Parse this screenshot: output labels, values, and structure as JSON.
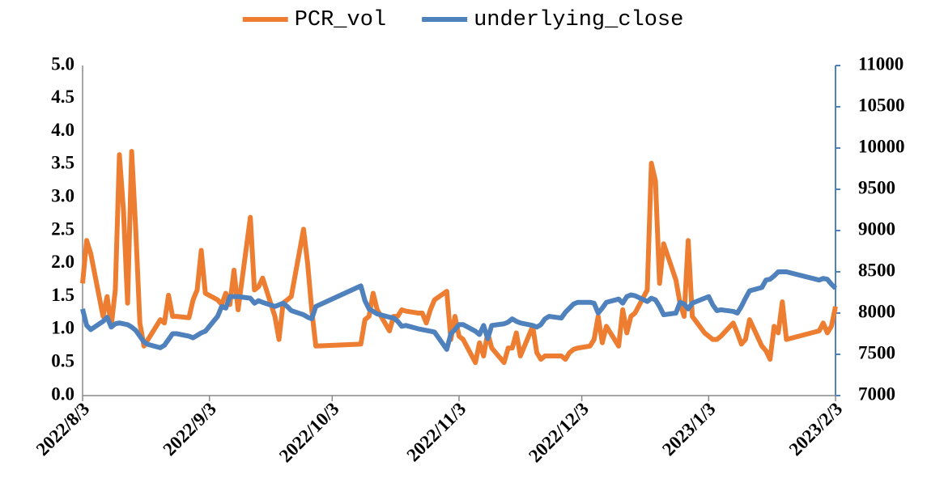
{
  "chart_data": {
    "type": "line",
    "x": [
      "2022/8/3",
      "2022/8/4",
      "2022/8/5",
      "2022/8/8",
      "2022/8/9",
      "2022/8/10",
      "2022/8/11",
      "2022/8/12",
      "2022/8/13",
      "2022/8/14",
      "2022/8/15",
      "2022/8/16",
      "2022/8/17",
      "2022/8/18",
      "2022/8/19",
      "2022/8/22",
      "2022/8/23",
      "2022/8/24",
      "2022/8/25",
      "2022/8/26",
      "2022/8/29",
      "2022/8/30",
      "2022/8/31",
      "2022/9/1",
      "2022/9/2",
      "2022/9/5",
      "2022/9/6",
      "2022/9/7",
      "2022/9/8",
      "2022/9/9",
      "2022/9/10",
      "2022/9/13",
      "2022/9/14",
      "2022/9/15",
      "2022/9/16",
      "2022/9/19",
      "2022/9/20",
      "2022/9/21",
      "2022/9/22",
      "2022/9/23",
      "2022/9/26",
      "2022/9/27",
      "2022/9/28",
      "2022/9/29",
      "2022/10/10",
      "2022/10/11",
      "2022/10/12",
      "2022/10/13",
      "2022/10/14",
      "2022/10/17",
      "2022/10/18",
      "2022/10/19",
      "2022/10/20",
      "2022/10/21",
      "2022/10/24",
      "2022/10/25",
      "2022/10/26",
      "2022/10/27",
      "2022/10/28",
      "2022/10/31",
      "2022/11/1",
      "2022/11/2",
      "2022/11/3",
      "2022/11/4",
      "2022/11/7",
      "2022/11/8",
      "2022/11/9",
      "2022/11/10",
      "2022/11/11",
      "2022/11/14",
      "2022/11/15",
      "2022/11/16",
      "2022/11/17",
      "2022/11/18",
      "2022/11/21",
      "2022/11/22",
      "2022/11/23",
      "2022/11/24",
      "2022/11/25",
      "2022/11/28",
      "2022/11/29",
      "2022/11/30",
      "2022/12/1",
      "2022/12/2",
      "2022/12/5",
      "2022/12/6",
      "2022/12/7",
      "2022/12/8",
      "2022/12/9",
      "2022/12/12",
      "2022/12/13",
      "2022/12/14",
      "2022/12/15",
      "2022/12/16",
      "2022/12/19",
      "2022/12/20",
      "2022/12/21",
      "2022/12/22",
      "2022/12/23",
      "2022/12/26",
      "2022/12/27",
      "2022/12/28",
      "2022/12/29",
      "2022/12/30",
      "2023/1/2",
      "2023/1/3",
      "2023/1/4",
      "2023/1/5",
      "2023/1/6",
      "2023/1/9",
      "2023/1/10",
      "2023/1/11",
      "2023/1/12",
      "2023/1/13",
      "2023/1/16",
      "2023/1/17",
      "2023/1/18",
      "2023/1/19",
      "2023/1/20",
      "2023/1/21",
      "2023/1/22",
      "2023/1/30",
      "2023/1/31",
      "2023/2/1",
      "2023/2/2",
      "2023/2/3"
    ],
    "series": [
      {
        "name": "PCR_vol",
        "color": "#ED7D31",
        "values": [
          1.7,
          2.35,
          2.15,
          1.2,
          1.5,
          1.05,
          1.6,
          3.65,
          2.8,
          1.4,
          3.7,
          2.5,
          1.1,
          0.75,
          0.85,
          1.15,
          1.1,
          1.52,
          1.2,
          1.2,
          1.18,
          1.45,
          1.6,
          2.2,
          1.55,
          1.45,
          1.38,
          1.55,
          1.38,
          1.9,
          1.3,
          2.7,
          1.6,
          1.65,
          1.78,
          1.2,
          0.85,
          1.4,
          1.45,
          1.5,
          2.52,
          2.0,
          1.3,
          0.75,
          0.78,
          1.15,
          1.2,
          1.55,
          1.3,
          0.98,
          1.2,
          1.2,
          1.3,
          1.28,
          1.25,
          1.25,
          1.1,
          1.3,
          1.45,
          1.58,
          0.85,
          1.2,
          0.9,
          0.85,
          0.5,
          0.8,
          0.6,
          0.95,
          0.72,
          0.5,
          0.72,
          0.72,
          0.95,
          0.6,
          1.05,
          0.65,
          0.55,
          0.6,
          0.6,
          0.6,
          0.55,
          0.65,
          0.7,
          0.72,
          0.75,
          0.85,
          1.2,
          0.8,
          1.05,
          0.75,
          1.3,
          0.95,
          1.2,
          1.25,
          1.6,
          3.52,
          3.25,
          1.7,
          2.3,
          1.75,
          1.4,
          1.2,
          2.35,
          1.2,
          0.95,
          0.9,
          0.85,
          0.85,
          0.9,
          1.1,
          0.95,
          0.78,
          0.85,
          1.15,
          0.75,
          0.68,
          0.55,
          1.05,
          0.95,
          1.42,
          0.85,
          0.98,
          1.1,
          0.95,
          1.05,
          1.35
        ]
      },
      {
        "name": "underlying_close",
        "color": "#4F81BD",
        "axis": "y2",
        "values": [
          8050,
          7850,
          7800,
          7900,
          7950,
          7830,
          7870,
          7880,
          7870,
          7860,
          7830,
          7790,
          7720,
          7650,
          7620,
          7580,
          7610,
          7680,
          7750,
          7750,
          7720,
          7700,
          7730,
          7760,
          7780,
          7960,
          8080,
          8060,
          8200,
          8200,
          8200,
          8180,
          8120,
          8150,
          8130,
          8080,
          8100,
          8120,
          8080,
          8030,
          7980,
          7950,
          7930,
          8080,
          8330,
          8150,
          8050,
          8020,
          7990,
          7950,
          7940,
          7900,
          7840,
          7850,
          7810,
          7800,
          7790,
          7780,
          7770,
          7560,
          7750,
          7800,
          7860,
          7860,
          7780,
          7740,
          7850,
          7690,
          7850,
          7870,
          7890,
          7930,
          7900,
          7880,
          7850,
          7830,
          7860,
          7930,
          7960,
          7940,
          8010,
          8060,
          8110,
          8130,
          8130,
          8120,
          8000,
          8060,
          8130,
          8170,
          8120,
          8200,
          8220,
          8210,
          8140,
          8180,
          8160,
          8080,
          7980,
          8000,
          8130,
          8110,
          8050,
          8120,
          8180,
          8200,
          8100,
          8030,
          8040,
          8020,
          8000,
          8080,
          8180,
          8270,
          8310,
          8400,
          8410,
          8450,
          8500,
          8500,
          8500,
          8400,
          8420,
          8410,
          8350,
          8300
        ]
      }
    ],
    "xlim": [
      "2022/8/3",
      "2023/2/3"
    ],
    "xticks": [
      "2022/8/3",
      "2022/9/3",
      "2022/10/3",
      "2022/11/3",
      "2022/12/3",
      "2023/1/3",
      "2023/2/3"
    ],
    "ylim": [
      0,
      5
    ],
    "yticks": [
      {
        "value": 0,
        "label": "0.0"
      },
      0.5,
      {
        "value": 1,
        "label": "1.0"
      },
      1.5,
      {
        "value": 2,
        "label": "2.0"
      },
      2.5,
      {
        "value": 3,
        "label": "3.0"
      },
      3.5,
      {
        "value": 4,
        "label": "4.0"
      },
      4.5,
      {
        "value": 5,
        "label": "5.0"
      }
    ],
    "y2lim": [
      7000,
      11000
    ],
    "y2ticks": [
      7000,
      7500,
      8000,
      8500,
      9000,
      9500,
      10000,
      10500,
      11000
    ],
    "legend": "top"
  }
}
